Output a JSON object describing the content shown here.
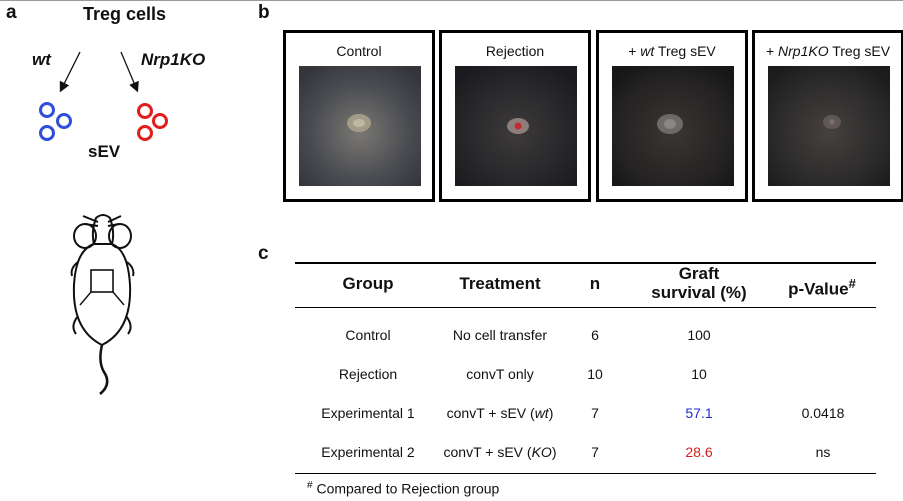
{
  "panels": {
    "a": {
      "label": "a",
      "title": "Treg cells",
      "wt_label": "wt",
      "ko_label": "Nrp1KO",
      "sev_label": "sEV",
      "colors": {
        "wt": "#2f4fd8",
        "ko": "#e01e1e"
      }
    },
    "b": {
      "label": "b",
      "photos": [
        {
          "title": "Control"
        },
        {
          "title": "Rejection"
        },
        {
          "prefix": "+ ",
          "italic": "wt",
          "suffix": " Treg sEV"
        },
        {
          "prefix": "+ ",
          "italic": "Nrp1KO",
          "suffix": " Treg sEV"
        }
      ]
    },
    "c": {
      "label": "c",
      "headers": {
        "group": "Group",
        "treatment": "Treatment",
        "n": "n",
        "graft_line1": "Graft",
        "graft_line2": "survival (%)",
        "pvalue": "p-Value",
        "pvalue_sup": "#"
      },
      "rows": [
        {
          "group": "Control",
          "treatment": "No cell transfer",
          "treatment_italic": "",
          "treatment_end": "",
          "n": "6",
          "survival": "100",
          "pvalue": ""
        },
        {
          "group": "Rejection",
          "treatment": "convT only",
          "treatment_italic": "",
          "treatment_end": "",
          "n": "10",
          "survival": "10",
          "pvalue": ""
        },
        {
          "group": "Experimental 1",
          "treatment": "convT + sEV (",
          "treatment_italic": "wt",
          "treatment_end": ")",
          "n": "7",
          "survival": "57.1",
          "pvalue": "0.0418",
          "survival_color": "#1f2bd0"
        },
        {
          "group": "Experimental 2",
          "treatment": "convT + sEV (",
          "treatment_italic": "KO",
          "treatment_end": ")",
          "n": "7",
          "survival": "28.6",
          "pvalue": "ns",
          "survival_color": "#d21f1f"
        }
      ],
      "footnote_mark": "#",
      "footnote": " Compared to Rejection group"
    }
  }
}
